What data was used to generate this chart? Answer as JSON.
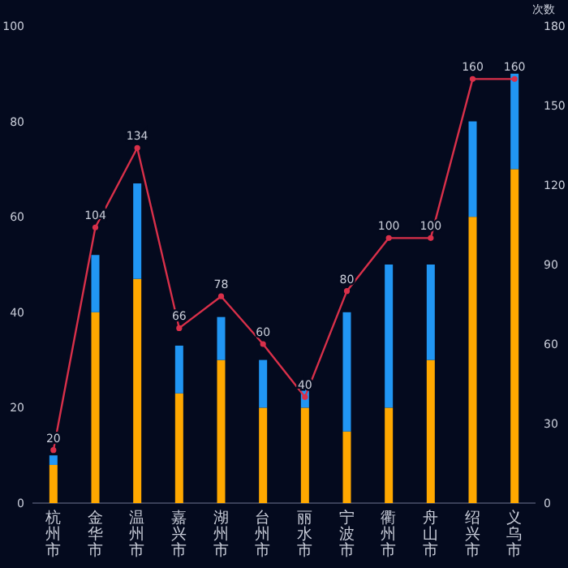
{
  "chart_data": {
    "type": "bar",
    "stacked": true,
    "categories": [
      "杭州市",
      "金华市",
      "温州市",
      "嘉兴市",
      "湖州市",
      "台州市",
      "丽水市",
      "宁波市",
      "衢州市",
      "舟山市",
      "绍兴市",
      "义乌市"
    ],
    "y2label": "次数",
    "ylim": [
      0,
      100
    ],
    "yticks": [
      0,
      20,
      40,
      60,
      80,
      100
    ],
    "y2lim": [
      0,
      180
    ],
    "y2ticks": [
      0,
      30,
      60,
      90,
      120,
      150,
      180
    ],
    "grid": false,
    "series": [
      {
        "color": "#ffa800",
        "values": [
          8,
          40,
          47,
          23,
          30,
          20,
          20,
          15,
          20,
          30,
          60,
          70
        ]
      },
      {
        "color": "#2196f3",
        "values": [
          2,
          12,
          20,
          10,
          9,
          10,
          4,
          25,
          30,
          20,
          20,
          20
        ]
      },
      {
        "type": "line",
        "axis": "y2",
        "color": "#d9304a",
        "marker": "circle",
        "data_labels": true,
        "values": [
          20,
          104,
          134,
          66,
          78,
          60,
          40,
          80,
          100,
          100,
          160,
          160
        ]
      }
    ]
  }
}
